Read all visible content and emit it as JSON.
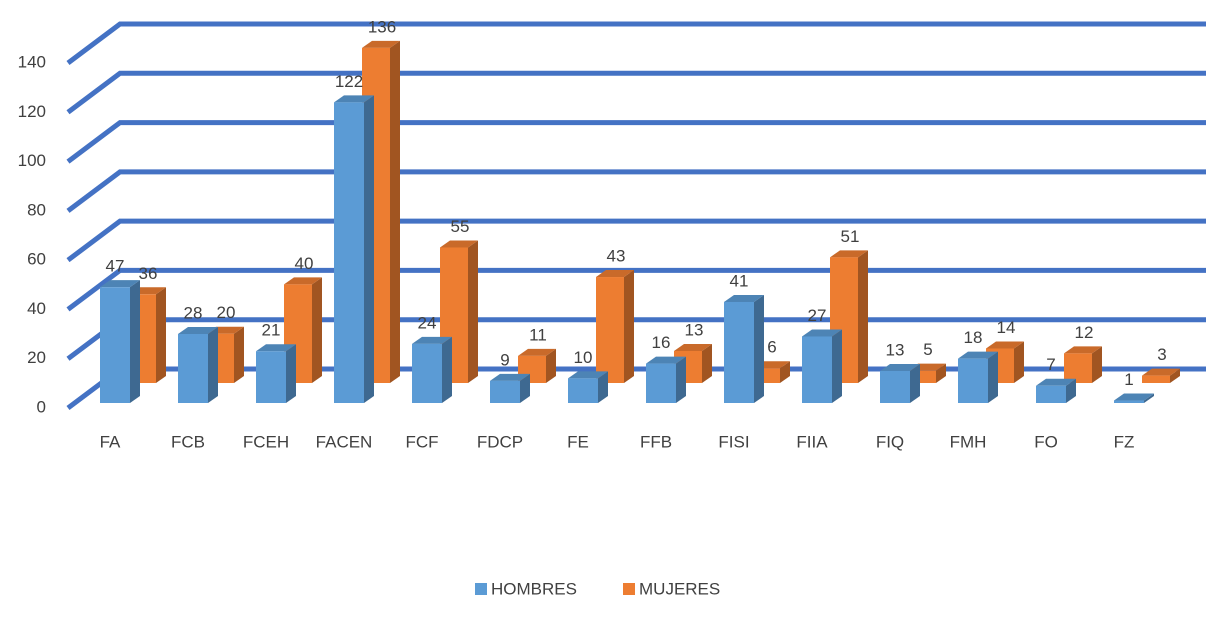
{
  "chart_data": {
    "type": "bar",
    "categories": [
      "FA",
      "FCB",
      "FCEH",
      "FACEN",
      "FCF",
      "FDCP",
      "FE",
      "FFB",
      "FISI",
      "FIIA",
      "FIQ",
      "FMH",
      "FO",
      "FZ"
    ],
    "series": [
      {
        "name": "HOMBRES",
        "color": "#5b9bd5",
        "values": [
          47,
          28,
          21,
          122,
          24,
          9,
          10,
          16,
          41,
          27,
          13,
          18,
          7,
          1
        ]
      },
      {
        "name": "MUJERES",
        "color": "#ed7d31",
        "values": [
          36,
          20,
          40,
          136,
          55,
          11,
          43,
          13,
          6,
          51,
          5,
          14,
          12,
          3
        ]
      }
    ],
    "ylim": [
      0,
      140
    ],
    "yticks": [
      0,
      20,
      40,
      60,
      80,
      100,
      120,
      140
    ],
    "grid": true,
    "legend": "bottom"
  }
}
